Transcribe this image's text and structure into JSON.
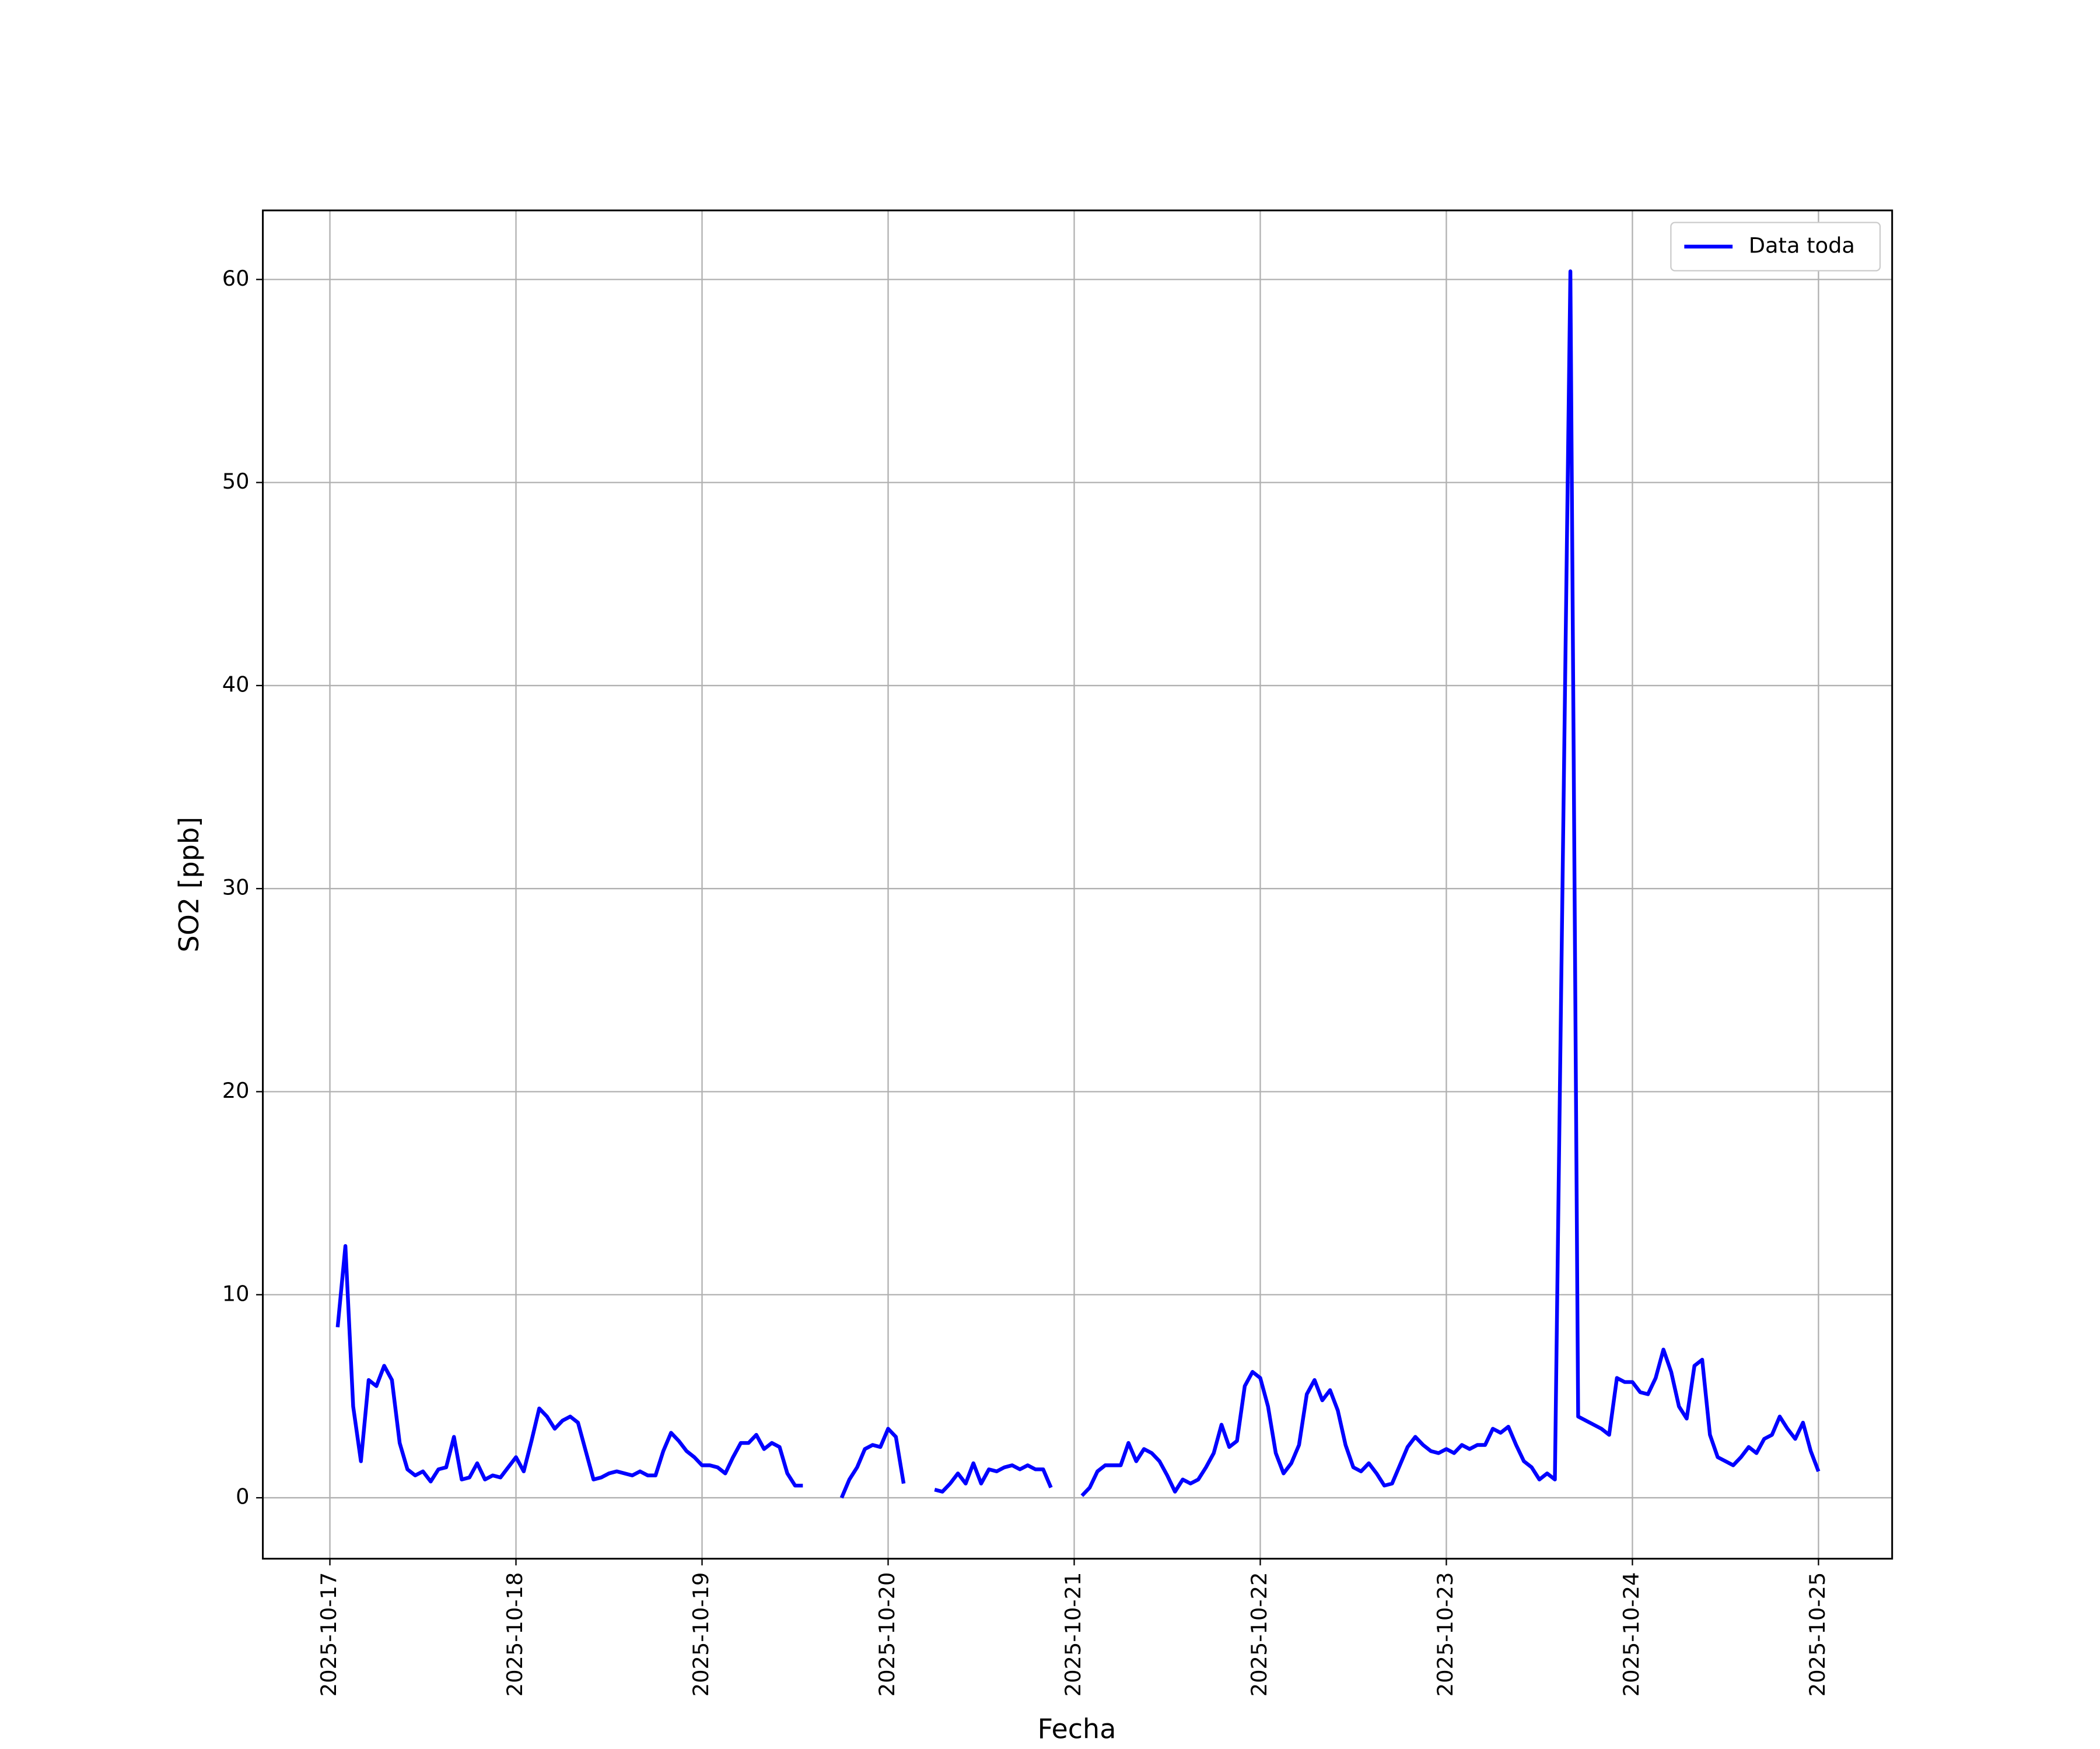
{
  "chart_data": {
    "type": "line",
    "xlabel": "Fecha",
    "ylabel": "SO2 [ppb]",
    "x": [
      "2025-10-17 01:00",
      "2025-10-17 02:00",
      "2025-10-17 03:00",
      "2025-10-17 04:00",
      "2025-10-17 05:00",
      "2025-10-17 06:00",
      "2025-10-17 07:00",
      "2025-10-17 08:00",
      "2025-10-17 09:00",
      "2025-10-17 10:00",
      "2025-10-17 11:00",
      "2025-10-17 12:00",
      "2025-10-17 13:00",
      "2025-10-17 14:00",
      "2025-10-17 15:00",
      "2025-10-17 16:00",
      "2025-10-17 17:00",
      "2025-10-17 18:00",
      "2025-10-17 19:00",
      "2025-10-17 20:00",
      "2025-10-17 21:00",
      "2025-10-17 22:00",
      "2025-10-17 23:00",
      "2025-10-18 00:00",
      "2025-10-18 01:00",
      "2025-10-18 02:00",
      "2025-10-18 03:00",
      "2025-10-18 04:00",
      "2025-10-18 05:00",
      "2025-10-18 06:00",
      "2025-10-18 07:00",
      "2025-10-18 08:00",
      "2025-10-18 09:00",
      "2025-10-18 10:00",
      "2025-10-18 11:00",
      "2025-10-18 12:00",
      "2025-10-18 13:00",
      "2025-10-18 14:00",
      "2025-10-18 15:00",
      "2025-10-18 16:00",
      "2025-10-18 17:00",
      "2025-10-18 18:00",
      "2025-10-18 19:00",
      "2025-10-18 20:00",
      "2025-10-18 21:00",
      "2025-10-18 22:00",
      "2025-10-18 23:00",
      "2025-10-19 00:00",
      "2025-10-19 01:00",
      "2025-10-19 02:00",
      "2025-10-19 03:00",
      "2025-10-19 04:00",
      "2025-10-19 05:00",
      "2025-10-19 06:00",
      "2025-10-19 07:00",
      "2025-10-19 08:00",
      "2025-10-19 09:00",
      "2025-10-19 10:00",
      "2025-10-19 11:00",
      "2025-10-19 12:00",
      "2025-10-19 13:00",
      "2025-10-19 15:00",
      "2025-10-19 18:00",
      "2025-10-19 19:00",
      "2025-10-19 20:00",
      "2025-10-19 21:00",
      "2025-10-19 22:00",
      "2025-10-19 23:00",
      "2025-10-20 00:00",
      "2025-10-20 01:00",
      "2025-10-20 02:00",
      "2025-10-20 04:00",
      "2025-10-20 06:00",
      "2025-10-20 07:00",
      "2025-10-20 08:00",
      "2025-10-20 09:00",
      "2025-10-20 10:00",
      "2025-10-20 11:00",
      "2025-10-20 12:00",
      "2025-10-20 13:00",
      "2025-10-20 14:00",
      "2025-10-20 15:00",
      "2025-10-20 16:00",
      "2025-10-20 17:00",
      "2025-10-20 18:00",
      "2025-10-20 19:00",
      "2025-10-20 20:00",
      "2025-10-20 21:00",
      "2025-10-20 23:00",
      "2025-10-21 01:00",
      "2025-10-21 02:00",
      "2025-10-21 03:00",
      "2025-10-21 04:00",
      "2025-10-21 05:00",
      "2025-10-21 06:00",
      "2025-10-21 07:00",
      "2025-10-21 08:00",
      "2025-10-21 09:00",
      "2025-10-21 10:00",
      "2025-10-21 11:00",
      "2025-10-21 12:00",
      "2025-10-21 13:00",
      "2025-10-21 14:00",
      "2025-10-21 15:00",
      "2025-10-21 16:00",
      "2025-10-21 17:00",
      "2025-10-21 18:00",
      "2025-10-21 19:00",
      "2025-10-21 20:00",
      "2025-10-21 21:00",
      "2025-10-21 22:00",
      "2025-10-21 23:00",
      "2025-10-22 00:00",
      "2025-10-22 01:00",
      "2025-10-22 02:00",
      "2025-10-22 03:00",
      "2025-10-22 04:00",
      "2025-10-22 05:00",
      "2025-10-22 06:00",
      "2025-10-22 07:00",
      "2025-10-22 08:00",
      "2025-10-22 09:00",
      "2025-10-22 10:00",
      "2025-10-22 11:00",
      "2025-10-22 12:00",
      "2025-10-22 13:00",
      "2025-10-22 14:00",
      "2025-10-22 15:00",
      "2025-10-22 16:00",
      "2025-10-22 17:00",
      "2025-10-22 18:00",
      "2025-10-22 19:00",
      "2025-10-22 20:00",
      "2025-10-22 21:00",
      "2025-10-22 22:00",
      "2025-10-22 23:00",
      "2025-10-23 00:00",
      "2025-10-23 01:00",
      "2025-10-23 02:00",
      "2025-10-23 03:00",
      "2025-10-23 04:00",
      "2025-10-23 05:00",
      "2025-10-23 06:00",
      "2025-10-23 07:00",
      "2025-10-23 08:00",
      "2025-10-23 09:00",
      "2025-10-23 10:00",
      "2025-10-23 11:00",
      "2025-10-23 12:00",
      "2025-10-23 13:00",
      "2025-10-23 14:00",
      "2025-10-23 16:00",
      "2025-10-23 17:00",
      "2025-10-23 18:00",
      "2025-10-23 19:00",
      "2025-10-23 20:00",
      "2025-10-23 21:00",
      "2025-10-23 22:00",
      "2025-10-23 23:00",
      "2025-10-24 00:00",
      "2025-10-24 01:00",
      "2025-10-24 02:00",
      "2025-10-24 03:00",
      "2025-10-24 04:00",
      "2025-10-24 05:00",
      "2025-10-24 06:00",
      "2025-10-24 07:00",
      "2025-10-24 08:00",
      "2025-10-24 09:00",
      "2025-10-24 10:00",
      "2025-10-24 11:00",
      "2025-10-24 12:00",
      "2025-10-24 13:00",
      "2025-10-24 14:00",
      "2025-10-24 15:00",
      "2025-10-24 16:00",
      "2025-10-24 17:00",
      "2025-10-24 18:00",
      "2025-10-24 19:00",
      "2025-10-24 20:00",
      "2025-10-24 21:00",
      "2025-10-24 22:00",
      "2025-10-24 23:00",
      "2025-10-25 00:00"
    ],
    "series": [
      {
        "name": "Data toda",
        "color": "#0000ff",
        "values": [
          8.4,
          12.4,
          4.5,
          1.8,
          5.8,
          5.5,
          6.5,
          5.8,
          2.7,
          1.4,
          1.1,
          1.3,
          0.8,
          1.4,
          1.5,
          3.0,
          0.9,
          1.0,
          1.7,
          0.9,
          1.1,
          1.0,
          1.5,
          2.0,
          1.3,
          2.8,
          4.4,
          4.0,
          3.4,
          3.8,
          4.0,
          3.7,
          2.3,
          0.9,
          1.0,
          1.2,
          1.3,
          1.2,
          1.1,
          1.3,
          1.1,
          1.1,
          2.3,
          3.2,
          2.8,
          2.3,
          2.0,
          1.6,
          1.6,
          1.5,
          1.2,
          2.0,
          2.7,
          2.7,
          3.1,
          2.4,
          2.7,
          2.5,
          1.2,
          0.6,
          0.6,
          null,
          0.0,
          0.9,
          1.5,
          2.4,
          2.6,
          2.5,
          3.4,
          3.0,
          0.7,
          null,
          0.4,
          0.3,
          0.7,
          1.2,
          0.7,
          1.7,
          0.7,
          1.4,
          1.3,
          1.5,
          1.6,
          1.4,
          1.6,
          1.4,
          1.4,
          0.5,
          null,
          0.1,
          0.5,
          1.3,
          1.6,
          1.6,
          1.6,
          2.7,
          1.8,
          2.4,
          2.2,
          1.8,
          1.1,
          0.3,
          0.9,
          0.7,
          0.9,
          1.5,
          2.2,
          3.6,
          2.5,
          2.8,
          5.5,
          6.2,
          5.9,
          4.5,
          2.2,
          1.2,
          1.7,
          2.6,
          5.1,
          5.8,
          4.8,
          5.3,
          4.3,
          2.6,
          1.5,
          1.3,
          1.7,
          1.2,
          0.6,
          0.7,
          1.6,
          2.5,
          3.0,
          2.6,
          2.3,
          2.2,
          2.4,
          2.2,
          2.6,
          2.4,
          2.6,
          2.6,
          3.4,
          3.2,
          3.5,
          2.6,
          1.8,
          1.5,
          0.9,
          1.2,
          0.9,
          60.4,
          4.0,
          3.8,
          3.6,
          3.4,
          3.1,
          5.9,
          5.7,
          5.7,
          5.2,
          5.1,
          5.9,
          7.3,
          6.2,
          4.5,
          3.9,
          6.5,
          6.8,
          3.1,
          2.0,
          1.8,
          1.6,
          2.0,
          2.5,
          2.2,
          2.9,
          3.1,
          4.0,
          3.4,
          2.9,
          3.7,
          2.3,
          1.3
        ]
      }
    ],
    "xlim": [
      "2025-10-16 15:21",
      "2025-10-25 09:30"
    ],
    "xticks": [
      "2025-10-17",
      "2025-10-18",
      "2025-10-19",
      "2025-10-20",
      "2025-10-21",
      "2025-10-22",
      "2025-10-23",
      "2025-10-24",
      "2025-10-25"
    ],
    "ylim": [
      -3,
      63.4
    ],
    "yticks": [
      0,
      10,
      20,
      30,
      40,
      50,
      60
    ],
    "grid": true,
    "legend": "upper right"
  }
}
